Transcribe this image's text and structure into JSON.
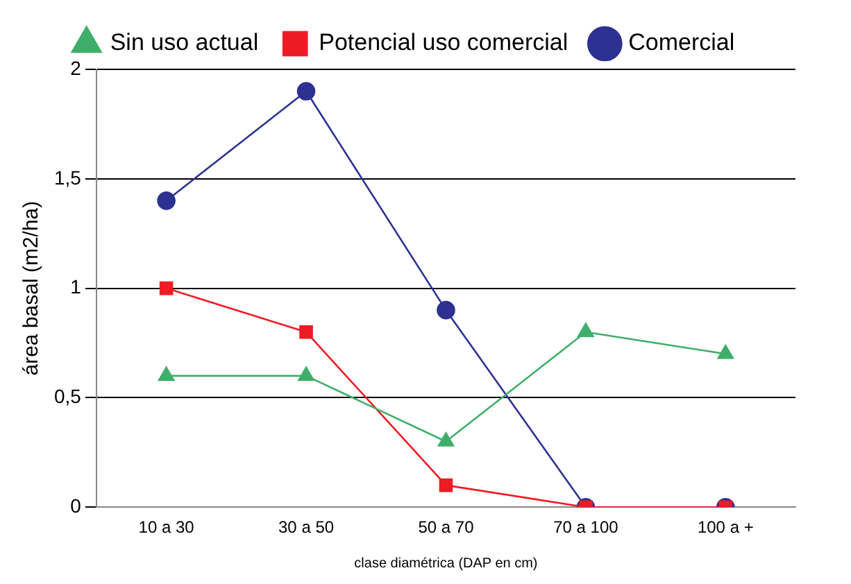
{
  "chart_data": {
    "type": "line",
    "categories": [
      "10 a 30",
      "30 a 50",
      "50 a 70",
      "70 a 100",
      "100 a +"
    ],
    "xlabel": "clase diamétrica (DAP en cm)",
    "ylabel": "área basal (m2/ha)",
    "series": [
      {
        "name": "Comercial",
        "color": "#2e3192",
        "marker": "circle",
        "values": [
          1.4,
          1.9,
          0.9,
          0,
          0
        ]
      },
      {
        "name": "Potencial uso comercial",
        "color": "#ed1c24",
        "marker": "square",
        "values": [
          1.0,
          0.8,
          0.1,
          0,
          0
        ]
      },
      {
        "name": "Sin uso actual",
        "color": "#3fae6b",
        "marker": "triangle",
        "values": [
          0.6,
          0.6,
          0.3,
          0.8,
          0.7
        ]
      }
    ],
    "ylim": [
      0,
      2
    ],
    "yticks": [
      0,
      {
        "value": 0.5,
        "label": "0,5"
      },
      1,
      {
        "value": 1.5,
        "label": "1,5"
      },
      2
    ],
    "grid": "y",
    "legend": "top"
  }
}
